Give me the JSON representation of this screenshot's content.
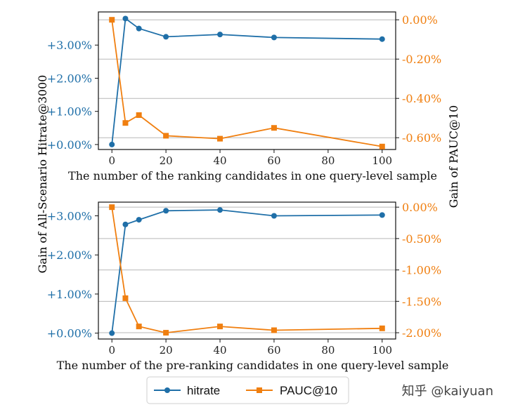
{
  "colors": {
    "hitrate": "#1f6fa8",
    "pauc": "#f07f10",
    "axis": "#111111",
    "grid": "#b8b8b8"
  },
  "left_axis_label": "Gain of All-Scenario Hitrate@3000",
  "right_axis_label": "Gain of PAUC@10",
  "legend": {
    "items": [
      {
        "label": "hitrate"
      },
      {
        "label": "PAUC@10"
      }
    ]
  },
  "watermark": "知乎 @kaiyuan",
  "chart_data": [
    {
      "type": "line",
      "xlabel": "The number of the ranking candidates in one query-level sample",
      "x": [
        0,
        5,
        10,
        20,
        40,
        60,
        100
      ],
      "xticks": [
        0,
        20,
        40,
        60,
        80,
        100
      ],
      "xlim": [
        -5,
        105
      ],
      "left_axis": {
        "ylim": [
          -0.0015,
          0.04
        ],
        "ticks": [
          0.0,
          0.01,
          0.02,
          0.03
        ],
        "tick_labels": [
          "+0.00%",
          "+1.00%",
          "+2.00%",
          "+3.00%"
        ]
      },
      "right_axis": {
        "ylim": [
          -0.0066,
          0.0004
        ],
        "ticks": [
          0.0,
          -0.002,
          -0.004,
          -0.006
        ],
        "tick_labels": [
          "0.00%",
          "-0.20%",
          "-0.40%",
          "-0.60%"
        ]
      },
      "series": [
        {
          "name": "hitrate",
          "axis": "left",
          "marker": "circle",
          "values": [
            0.0,
            0.038,
            0.035,
            0.0325,
            0.0332,
            0.0323,
            0.0318
          ]
        },
        {
          "name": "PAUC@10",
          "axis": "right",
          "marker": "square",
          "values": [
            0.0,
            -0.00525,
            -0.00485,
            -0.0059,
            -0.00605,
            -0.0055,
            -0.00645
          ]
        }
      ]
    },
    {
      "type": "line",
      "xlabel": "The number of the pre-ranking candidates in one query-level sample",
      "x": [
        0,
        5,
        10,
        20,
        40,
        60,
        100
      ],
      "xticks": [
        0,
        20,
        40,
        60,
        80,
        100
      ],
      "xlim": [
        -5,
        105
      ],
      "left_axis": {
        "ylim": [
          -0.0015,
          0.0335
        ],
        "ticks": [
          0.0,
          0.01,
          0.02,
          0.03
        ],
        "tick_labels": [
          "+0.00%",
          "+1.00%",
          "+2.00%",
          "+3.00%"
        ]
      },
      "right_axis": {
        "ylim": [
          -0.021,
          0.0008
        ],
        "ticks": [
          0.0,
          -0.005,
          -0.01,
          -0.015,
          -0.02
        ],
        "tick_labels": [
          "0.00%",
          "-0.50%",
          "-1.00%",
          "-1.50%",
          "-2.00%"
        ]
      },
      "series": [
        {
          "name": "hitrate",
          "axis": "left",
          "marker": "circle",
          "values": [
            0.0,
            0.0278,
            0.029,
            0.0313,
            0.0315,
            0.03,
            0.0302
          ]
        },
        {
          "name": "PAUC@10",
          "axis": "right",
          "marker": "square",
          "values": [
            0.0,
            -0.0145,
            -0.019,
            -0.02,
            -0.019,
            -0.0196,
            -0.0193
          ]
        }
      ]
    }
  ]
}
